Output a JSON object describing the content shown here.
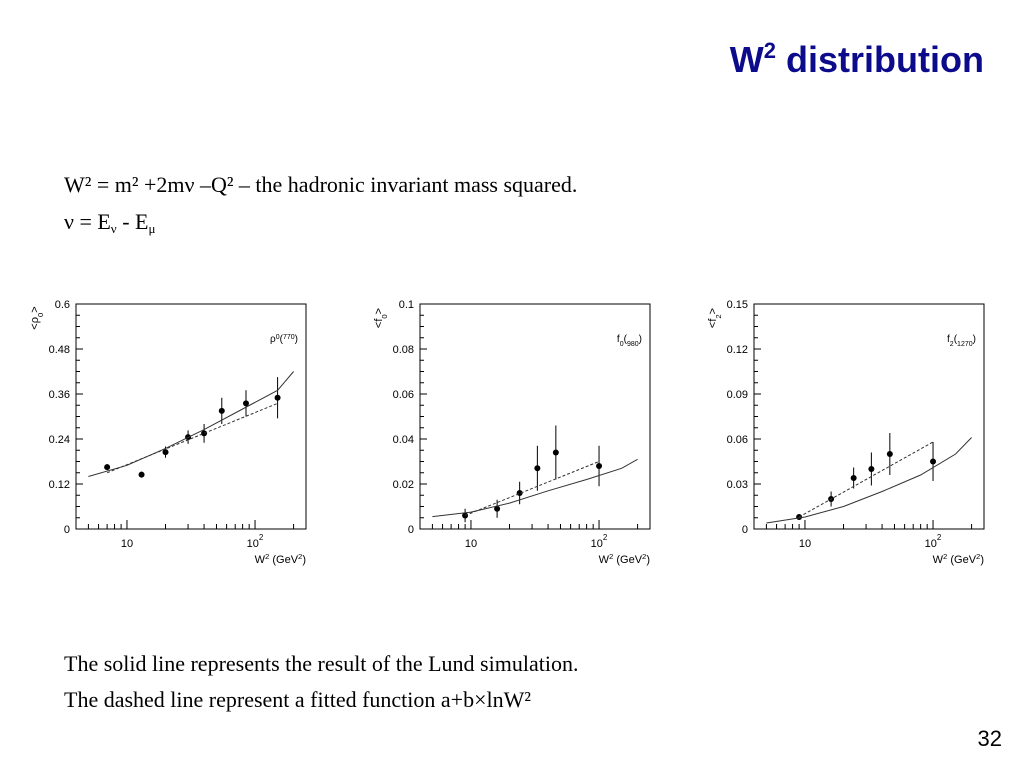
{
  "title": {
    "main": "W",
    "sup": "2",
    "rest": " distribution"
  },
  "text": {
    "definition": "W² = m² +2mν –Q²  – the hadronic invariant mass squared.",
    "nu_lhs": "ν = E",
    "nu_sub1": "ν",
    "nu_minus": " - E",
    "nu_sub2": "μ",
    "note_solid": "The solid line represents the result of the Lund simulation.",
    "note_dashed": "The dashed line represent a fitted function a+b×lnW²"
  },
  "page_number": "32",
  "chart_data": [
    {
      "type": "scatter",
      "ylabel": "<ρ0>",
      "xlabel": "W2 (GeV2)",
      "annotation": "ρ0(770)",
      "x_scale": "log",
      "xlim": [
        4,
        250
      ],
      "ylim": [
        0,
        0.6
      ],
      "xticks": [
        10,
        100
      ],
      "xtick_labels": [
        "10",
        "10²"
      ],
      "yticks": [
        0,
        0.12,
        0.24,
        0.36,
        0.48,
        0.6
      ],
      "ytick_labels": [
        "0",
        "0.12",
        "0.24",
        "0.36",
        "0.48",
        "0.6"
      ],
      "series": [
        {
          "style": "points",
          "x": [
            7,
            13,
            20,
            30,
            40,
            55,
            85,
            150
          ],
          "y": [
            0.165,
            0.145,
            0.205,
            0.245,
            0.255,
            0.315,
            0.335,
            0.35
          ],
          "yerr": [
            0.008,
            0.008,
            0.015,
            0.018,
            0.025,
            0.035,
            0.035,
            0.055
          ]
        },
        {
          "style": "solid",
          "x": [
            5,
            10,
            20,
            40,
            80,
            150,
            200
          ],
          "y": [
            0.14,
            0.17,
            0.215,
            0.265,
            0.32,
            0.37,
            0.42
          ]
        },
        {
          "style": "dashed",
          "x": [
            7,
            150
          ],
          "y": [
            0.15,
            0.335
          ]
        }
      ]
    },
    {
      "type": "scatter",
      "ylabel": "<f0>",
      "xlabel": "W2 (GeV2)",
      "annotation": "f0(980)",
      "x_scale": "log",
      "xlim": [
        4,
        250
      ],
      "ylim": [
        0,
        0.1
      ],
      "xticks": [
        10,
        100
      ],
      "xtick_labels": [
        "10",
        "10²"
      ],
      "yticks": [
        0,
        0.02,
        0.04,
        0.06,
        0.08,
        0.1
      ],
      "ytick_labels": [
        "0",
        "0.02",
        "0.04",
        "0.06",
        "0.08",
        "0.1"
      ],
      "series": [
        {
          "style": "points",
          "x": [
            9,
            16,
            24,
            33,
            46,
            100
          ],
          "y": [
            0.006,
            0.009,
            0.016,
            0.027,
            0.034,
            0.028
          ],
          "yerr": [
            0.003,
            0.004,
            0.005,
            0.01,
            0.012,
            0.009
          ]
        },
        {
          "style": "solid",
          "x": [
            5,
            10,
            20,
            40,
            80,
            150,
            200
          ],
          "y": [
            0.0055,
            0.0075,
            0.0115,
            0.017,
            0.022,
            0.027,
            0.031
          ]
        },
        {
          "style": "dashed",
          "x": [
            9,
            100
          ],
          "y": [
            0.006,
            0.03
          ]
        }
      ]
    },
    {
      "type": "scatter",
      "ylabel": "<f2>",
      "xlabel": "W2 (GeV2)",
      "annotation": "f2(1270)",
      "x_scale": "log",
      "xlim": [
        4,
        250
      ],
      "ylim": [
        0,
        0.15
      ],
      "xticks": [
        10,
        100
      ],
      "xtick_labels": [
        "10",
        "10²"
      ],
      "yticks": [
        0,
        0.03,
        0.06,
        0.09,
        0.12,
        0.15
      ],
      "ytick_labels": [
        "0",
        "0.03",
        "0.06",
        "0.09",
        "0.12",
        "0.15"
      ],
      "series": [
        {
          "style": "points",
          "x": [
            9,
            16,
            24,
            33,
            46,
            100
          ],
          "y": [
            0.008,
            0.02,
            0.034,
            0.04,
            0.05,
            0.045
          ],
          "yerr": [
            0.002,
            0.005,
            0.007,
            0.011,
            0.014,
            0.013
          ]
        },
        {
          "style": "solid",
          "x": [
            5,
            10,
            20,
            40,
            80,
            150,
            200
          ],
          "y": [
            0.004,
            0.008,
            0.015,
            0.025,
            0.036,
            0.05,
            0.061
          ]
        },
        {
          "style": "dashed",
          "x": [
            9,
            100
          ],
          "y": [
            0.008,
            0.058
          ]
        }
      ]
    }
  ]
}
